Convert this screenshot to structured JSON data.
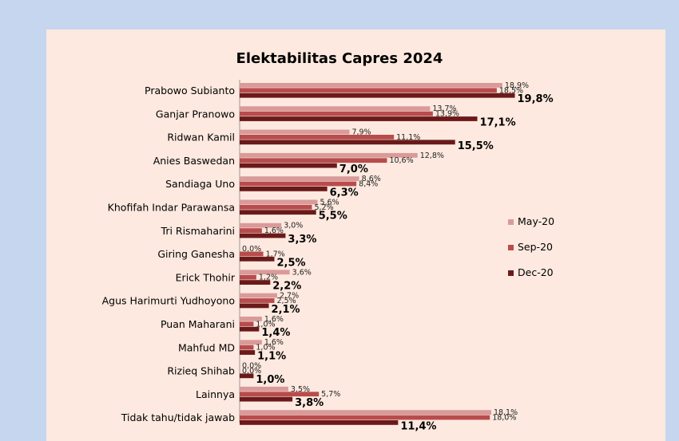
{
  "chart_data": {
    "type": "bar",
    "orientation": "horizontal",
    "title": "Elektabilitas Capres 2024",
    "categories": [
      "Prabowo Subianto",
      "Ganjar Pranowo",
      "Ridwan Kamil",
      "Anies Baswedan",
      "Sandiaga Uno",
      "Khofifah Indar Parawansa",
      "Tri Rismaharini",
      "Giring Ganesha",
      "Erick Thohir",
      "Agus Harimurti Yudhoyono",
      "Puan Maharani",
      "Mahfud MD",
      "Rizieq Shihab",
      "Lainnya",
      "Tidak tahu/tidak jawab"
    ],
    "series": [
      {
        "name": "May-20",
        "color": "#d99a9a",
        "values": [
          18.9,
          13.7,
          7.9,
          12.8,
          8.6,
          5.6,
          3.0,
          0.0,
          3.6,
          2.7,
          1.6,
          1.6,
          0.0,
          3.5,
          18.1
        ],
        "labels": [
          "18,9%",
          "13,7%",
          "7,9%",
          "12,8%",
          "8,6%",
          "5,6%",
          "3,0%",
          "0,0%",
          "3,6%",
          "2,7%",
          "1,6%",
          "1,6%",
          "0,0%",
          "3,5%",
          "18,1%"
        ]
      },
      {
        "name": "Sep-20",
        "color": "#b84c4c",
        "values": [
          18.5,
          13.9,
          11.1,
          10.6,
          8.4,
          5.2,
          1.6,
          1.7,
          1.2,
          2.5,
          1.0,
          1.0,
          0.0,
          5.7,
          18.0
        ],
        "labels": [
          "18,5%",
          "13,9%",
          "11,1%",
          "10,6%",
          "8,4%",
          "5,2%",
          "1,6%",
          "1,7%",
          "1,2%",
          "2,5%",
          "1,0%",
          "1,0%",
          "0,0%",
          "5,7%",
          "18,0%"
        ]
      },
      {
        "name": "Dec-20",
        "color": "#6a1a1a",
        "values": [
          19.8,
          17.1,
          15.5,
          7.0,
          6.3,
          5.5,
          3.3,
          2.5,
          2.2,
          2.1,
          1.4,
          1.1,
          1.0,
          3.8,
          11.4
        ],
        "labels": [
          "19,8%",
          "17,1%",
          "15,5%",
          "7,0%",
          "6,3%",
          "5,5%",
          "3,3%",
          "2,5%",
          "2,2%",
          "2,1%",
          "1,4%",
          "1,1%",
          "1,0%",
          "3,8%",
          "11,4%"
        ]
      }
    ],
    "xlim": [
      0,
      20.5
    ],
    "grid": false,
    "legend_position": "right"
  }
}
